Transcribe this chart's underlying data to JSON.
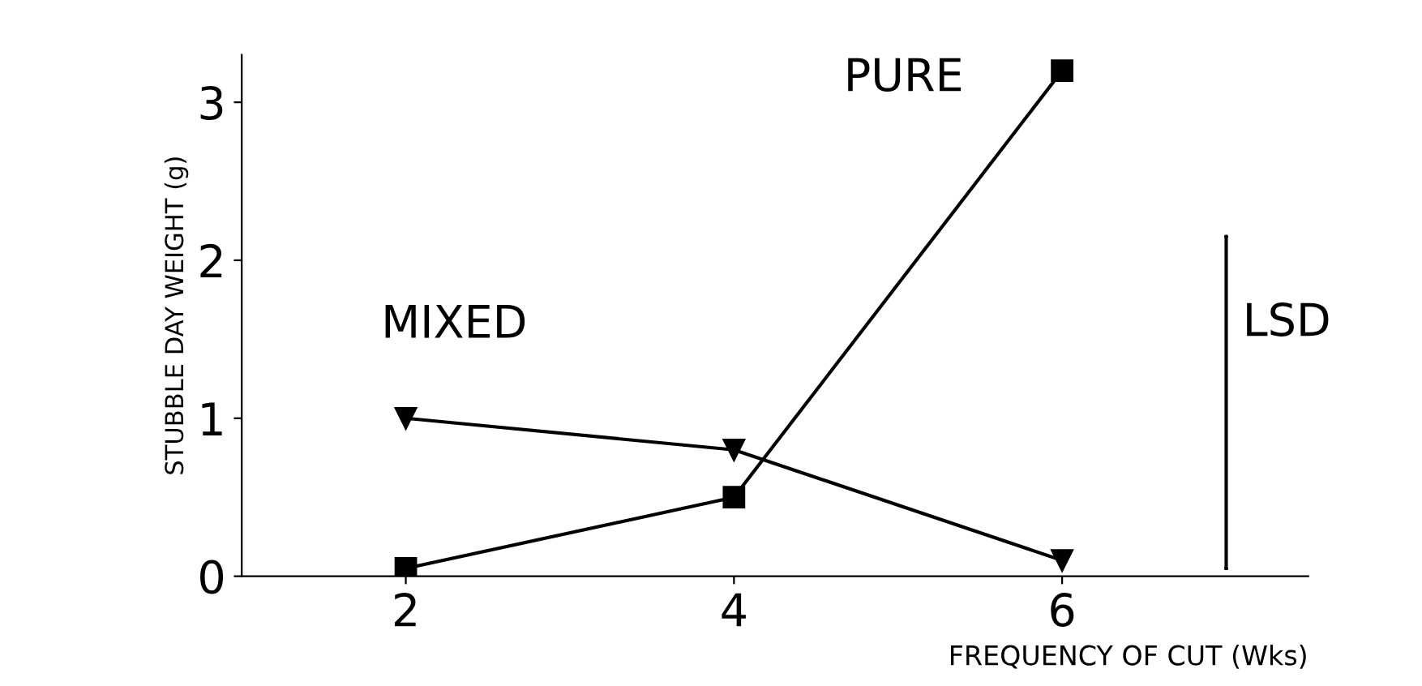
{
  "chart_data": {
    "type": "line",
    "xlabel": "FREQUENCY OF CUT (Wks)",
    "ylabel": "STUBBLE DAY WEIGHT (g)",
    "x": [
      2,
      4,
      6
    ],
    "series": [
      {
        "name": "MIXED",
        "color": "#000000",
        "marker": "triangle",
        "values": [
          1.0,
          0.8,
          0.1
        ]
      },
      {
        "name": "PURE",
        "color": "#000000",
        "marker": "square",
        "values": [
          0.05,
          0.5,
          3.2
        ]
      },
      {
        "name": "LSD",
        "type": "line",
        "color": "#000000",
        "marker": "none",
        "x": [
          7,
          7
        ],
        "values": [
          0.05,
          2.15
        ]
      }
    ],
    "xlim": [
      1,
      7.5
    ],
    "ylim": [
      0,
      3.3
    ],
    "xticks": [
      2,
      4,
      6
    ],
    "yticks": [
      0,
      1,
      2,
      3
    ],
    "grid": false,
    "legend": false
  }
}
